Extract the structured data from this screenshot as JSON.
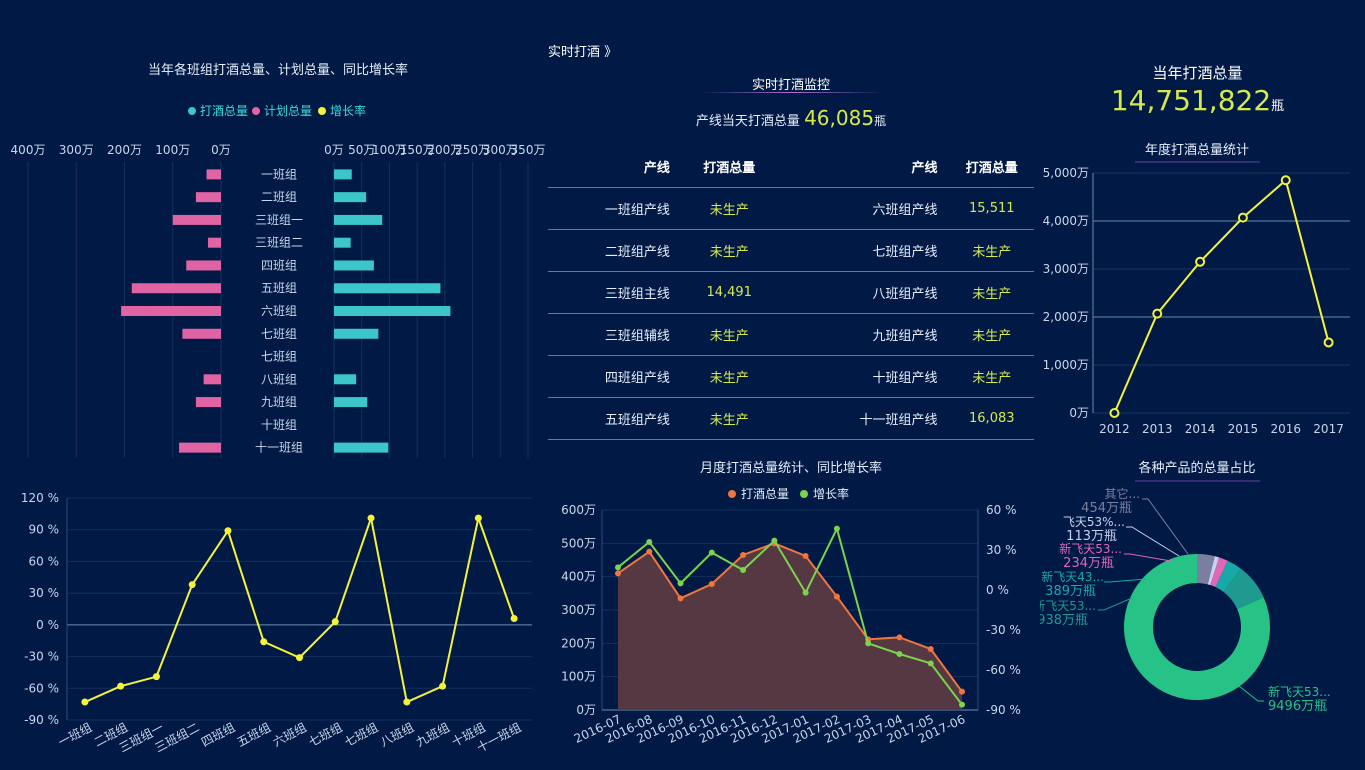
{
  "header": {
    "link": "实时打酒 》"
  },
  "monitor": {
    "title": "实时打酒监控",
    "today_label": "产线当天打酒总量",
    "today_value": "46,085",
    "today_unit": "瓶",
    "table_headers": [
      "产线",
      "打酒总量",
      "产线",
      "打酒总量"
    ],
    "rows": [
      [
        "一班组产线",
        "未生产",
        "六班组产线",
        "15,511"
      ],
      [
        "二班组产线",
        "未生产",
        "七班组产线",
        "未生产"
      ],
      [
        "三班组主线",
        "14,491",
        "八班组产线",
        "未生产"
      ],
      [
        "三班组辅线",
        "未生产",
        "九班组产线",
        "未生产"
      ],
      [
        "四班组产线",
        "未生产",
        "十班组产线",
        "未生产"
      ],
      [
        "五班组产线",
        "未生产",
        "十一班组产线",
        "16,083"
      ]
    ]
  },
  "grand_total": {
    "label": "当年打酒总量",
    "value": "14,751,822",
    "unit": "瓶"
  },
  "colors": {
    "teal": "#3cc6c9",
    "pink": "#e064a4",
    "yellow": "#f5f23a",
    "orange": "#f0753f",
    "green": "#7bd34e",
    "accent": "#d6e94a"
  },
  "chart_data": [
    {
      "type": "bar",
      "title": "当年各班组打酒总量、计划总量、同比增长率",
      "legend": [
        "打酒总量",
        "计划总量",
        "增长率"
      ],
      "legend_placement": "top-center",
      "categories": [
        "一班组",
        "二班组",
        "三班组一",
        "三班组二",
        "四班组",
        "五班组",
        "六班组",
        "七班组",
        "七班组",
        "八班组",
        "九班组",
        "十班组",
        "十一班组"
      ],
      "series": [
        {
          "name": "计划总量",
          "values": [
            30,
            52,
            100,
            27,
            72,
            185,
            207,
            80,
            0,
            36,
            52,
            0,
            87
          ]
        },
        {
          "name": "打酒总量",
          "values": [
            32,
            58,
            87,
            30,
            72,
            192,
            210,
            80,
            0,
            40,
            60,
            0,
            98
          ]
        }
      ],
      "left_ticks": [
        "400万",
        "300万",
        "200万",
        "100万",
        "0万"
      ],
      "right_ticks": [
        "0万",
        "50万",
        "100万",
        "150万",
        "200万",
        "250万",
        "300万",
        "350万"
      ],
      "xlim_left": [
        0,
        400
      ],
      "xlim_right": [
        0,
        350
      ]
    },
    {
      "type": "line",
      "title": "",
      "categories": [
        "一班组",
        "二班组",
        "三班组一",
        "三班组二",
        "四班组",
        "五班组",
        "六班组",
        "七班组",
        "七班组",
        "八班组",
        "九班组",
        "十班组",
        "十一班组"
      ],
      "series": [
        {
          "name": "增长率",
          "values": [
            -73,
            -58,
            -49,
            38,
            89,
            -16,
            -31,
            3,
            101,
            -73,
            -58,
            101,
            6
          ]
        }
      ],
      "y_ticks": [
        "120 %",
        "90 %",
        "60 %",
        "30 %",
        "0 %",
        "-30 %",
        "-60 %",
        "-90 %"
      ],
      "ylim": [
        -90,
        120
      ]
    },
    {
      "type": "line",
      "title": "年度打酒总量统计",
      "x": [
        "2012",
        "2013",
        "2014",
        "2015",
        "2016",
        "2017"
      ],
      "series": [
        {
          "name": "",
          "values": [
            0,
            2070,
            3150,
            4070,
            4850,
            1470
          ]
        }
      ],
      "y_ticks": [
        "5,000万",
        "4,000万",
        "3,000万",
        "2,000万",
        "1,000万",
        "0万"
      ],
      "ylim": [
        0,
        5000
      ]
    },
    {
      "type": "area",
      "title": "月度打酒总量统计、同比增长率",
      "legend": [
        "打酒总量",
        "增长率"
      ],
      "legend_placement": "top-center",
      "x": [
        "2016-07",
        "2016-08",
        "2016-09",
        "2016-10",
        "2016-11",
        "2016-12",
        "2017-01",
        "2017-02",
        "2017-03",
        "2017-04",
        "2017-05",
        "2017-06"
      ],
      "series": [
        {
          "name": "打酒总量",
          "values": [
            410,
            475,
            335,
            378,
            465,
            500,
            462,
            340,
            212,
            218,
            183,
            55
          ]
        },
        {
          "name": "增长率",
          "values": [
            17,
            36,
            5,
            28,
            15,
            37,
            -2,
            46,
            -40,
            -48,
            -55,
            -86
          ]
        }
      ],
      "y_left_ticks": [
        "600万",
        "500万",
        "400万",
        "300万",
        "200万",
        "100万",
        "0万"
      ],
      "y_right_ticks": [
        "60 %",
        "30 %",
        "0 %",
        "-30 %",
        "-60 %",
        "-90 %"
      ],
      "ylim_left": [
        0,
        600
      ],
      "ylim_right": [
        -90,
        60
      ]
    },
    {
      "type": "pie",
      "title": "各种产品的总量占比",
      "slices": [
        {
          "label_name": "新飞天53...",
          "label_value": "9496万瓶",
          "value": 9496,
          "color": "#27c386"
        },
        {
          "label_name": "新飞天53...",
          "label_value": "938万瓶",
          "value": 938,
          "color": "#1e9a90"
        },
        {
          "label_name": "新飞天43...",
          "label_value": "389万瓶",
          "value": 389,
          "color": "#17a9a8"
        },
        {
          "label_name": "新飞天53...",
          "label_value": "234万瓶",
          "value": 234,
          "color": "#e066b8"
        },
        {
          "label_name": "飞天53%...",
          "label_value": "113万瓶",
          "value": 113,
          "color": "#c7d1ee"
        },
        {
          "label_name": "其它...",
          "label_value": "454万瓶",
          "value": 454,
          "color": "#7a7fa0"
        }
      ]
    }
  ]
}
